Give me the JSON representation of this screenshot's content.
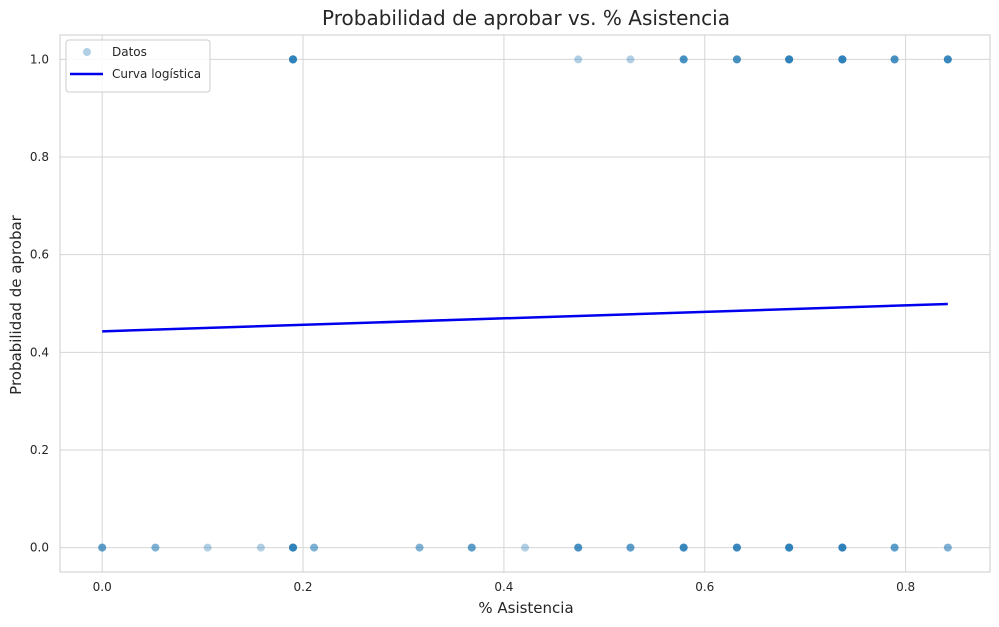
{
  "chart_data": {
    "type": "scatter",
    "title": "Probabilidad de aprobar vs. % Asistencia",
    "xlabel": "% Asistencia",
    "ylabel": "Probabilidad de aprobar",
    "xlim": [
      -0.042,
      0.884
    ],
    "ylim": [
      -0.05,
      1.05
    ],
    "xticks": [
      0.0,
      0.2,
      0.4,
      0.6,
      0.8
    ],
    "yticks": [
      0.0,
      0.2,
      0.4,
      0.6,
      0.8,
      1.0
    ],
    "xtick_labels": [
      "0.0",
      "0.2",
      "0.4",
      "0.6",
      "0.8"
    ],
    "ytick_labels": [
      "0.0",
      "0.2",
      "0.4",
      "0.6",
      "0.8",
      "1.0"
    ],
    "grid": true,
    "legend_position": "top-left",
    "series": [
      {
        "name": "Datos",
        "kind": "scatter",
        "color": "#1f77b4",
        "alpha": 0.35,
        "points": [
          [
            0.0,
            0
          ],
          [
            0.0,
            0
          ],
          [
            0.0,
            0
          ],
          [
            0.053,
            0
          ],
          [
            0.053,
            0
          ],
          [
            0.105,
            0
          ],
          [
            0.158,
            0
          ],
          [
            0.19,
            0
          ],
          [
            0.19,
            0
          ],
          [
            0.19,
            0
          ],
          [
            0.19,
            0
          ],
          [
            0.19,
            0
          ],
          [
            0.19,
            0
          ],
          [
            0.211,
            0
          ],
          [
            0.211,
            0
          ],
          [
            0.316,
            0
          ],
          [
            0.316,
            0
          ],
          [
            0.368,
            0
          ],
          [
            0.368,
            0
          ],
          [
            0.368,
            0
          ],
          [
            0.421,
            0
          ],
          [
            0.474,
            0
          ],
          [
            0.474,
            0
          ],
          [
            0.474,
            0
          ],
          [
            0.474,
            0
          ],
          [
            0.526,
            0
          ],
          [
            0.526,
            0
          ],
          [
            0.526,
            0
          ],
          [
            0.579,
            0
          ],
          [
            0.579,
            0
          ],
          [
            0.579,
            0
          ],
          [
            0.579,
            0
          ],
          [
            0.579,
            0
          ],
          [
            0.632,
            0
          ],
          [
            0.632,
            0
          ],
          [
            0.632,
            0
          ],
          [
            0.632,
            0
          ],
          [
            0.632,
            0
          ],
          [
            0.684,
            0
          ],
          [
            0.684,
            0
          ],
          [
            0.684,
            0
          ],
          [
            0.684,
            0
          ],
          [
            0.684,
            0
          ],
          [
            0.684,
            0
          ],
          [
            0.737,
            0
          ],
          [
            0.737,
            0
          ],
          [
            0.737,
            0
          ],
          [
            0.737,
            0
          ],
          [
            0.737,
            0
          ],
          [
            0.737,
            0
          ],
          [
            0.789,
            0
          ],
          [
            0.789,
            0
          ],
          [
            0.789,
            0
          ],
          [
            0.842,
            0
          ],
          [
            0.842,
            0
          ],
          [
            0.19,
            1
          ],
          [
            0.19,
            1
          ],
          [
            0.19,
            1
          ],
          [
            0.19,
            1
          ],
          [
            0.19,
            1
          ],
          [
            0.19,
            1
          ],
          [
            0.474,
            1
          ],
          [
            0.526,
            1
          ],
          [
            0.579,
            1
          ],
          [
            0.579,
            1
          ],
          [
            0.579,
            1
          ],
          [
            0.579,
            1
          ],
          [
            0.632,
            1
          ],
          [
            0.632,
            1
          ],
          [
            0.632,
            1
          ],
          [
            0.632,
            1
          ],
          [
            0.684,
            1
          ],
          [
            0.684,
            1
          ],
          [
            0.684,
            1
          ],
          [
            0.684,
            1
          ],
          [
            0.684,
            1
          ],
          [
            0.684,
            1
          ],
          [
            0.737,
            1
          ],
          [
            0.737,
            1
          ],
          [
            0.737,
            1
          ],
          [
            0.737,
            1
          ],
          [
            0.737,
            1
          ],
          [
            0.737,
            1
          ],
          [
            0.789,
            1
          ],
          [
            0.789,
            1
          ],
          [
            0.789,
            1
          ],
          [
            0.789,
            1
          ],
          [
            0.842,
            1
          ],
          [
            0.842,
            1
          ],
          [
            0.842,
            1
          ],
          [
            0.842,
            1
          ],
          [
            0.842,
            1
          ]
        ]
      },
      {
        "name": "Curva logística",
        "kind": "line",
        "color": "#0000ee",
        "x": [
          0.0,
          0.842
        ],
        "y": [
          0.443,
          0.499
        ]
      }
    ]
  }
}
